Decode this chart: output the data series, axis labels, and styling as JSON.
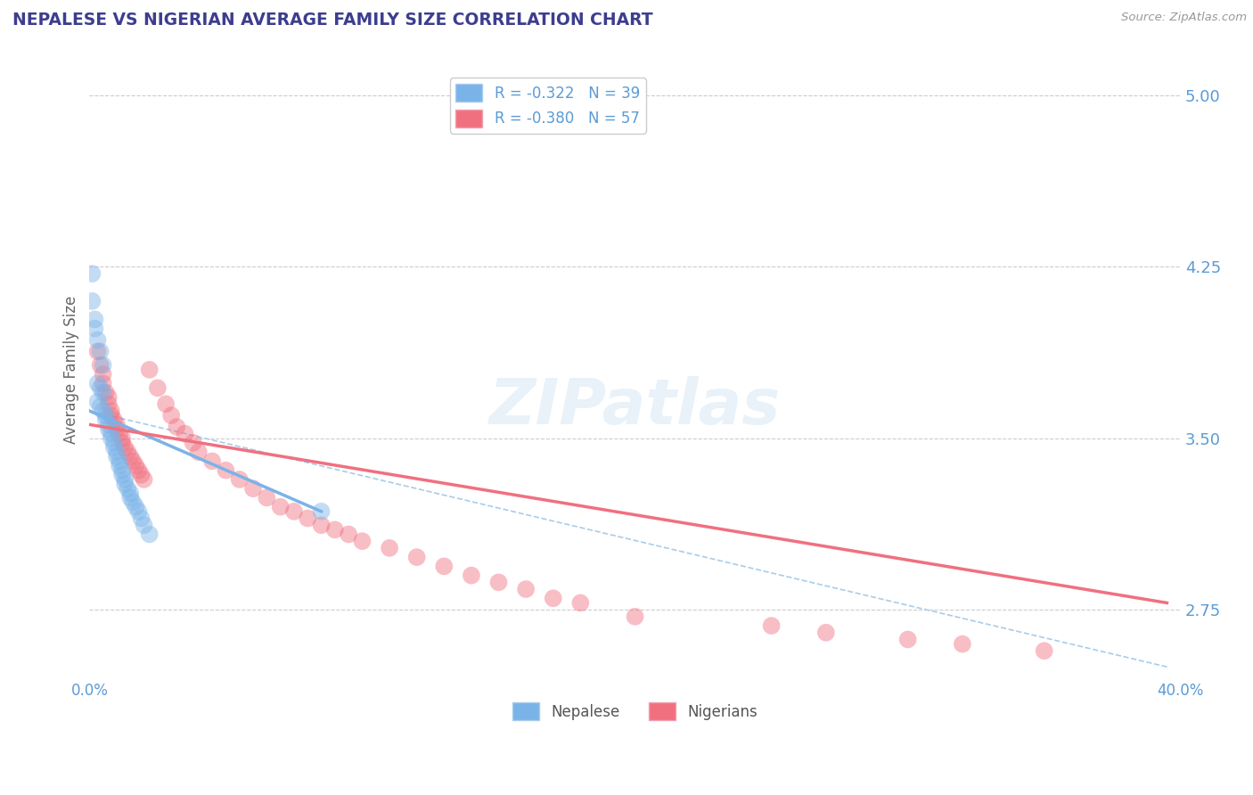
{
  "title": "NEPALESE VS NIGERIAN AVERAGE FAMILY SIZE CORRELATION CHART",
  "source": "Source: ZipAtlas.com",
  "ylabel": "Average Family Size",
  "xlim": [
    0.0,
    0.4
  ],
  "ylim": [
    2.45,
    5.15
  ],
  "yticks": [
    2.75,
    3.5,
    4.25,
    5.0
  ],
  "ytick_labels": [
    "2.75",
    "3.50",
    "4.25",
    "5.00"
  ],
  "xtick_vals": [
    0.0,
    0.4
  ],
  "xtick_labels": [
    "0.0%",
    "40.0%"
  ],
  "title_color": "#3d3d8f",
  "axis_tick_color": "#5b9bd5",
  "background_color": "#ffffff",
  "grid_color": "#cccccc",
  "nepal_color": "#7ab3e8",
  "nigeria_color": "#f07080",
  "nepal_scatter": [
    [
      0.001,
      4.22
    ],
    [
      0.001,
      4.1
    ],
    [
      0.002,
      4.02
    ],
    [
      0.002,
      3.98
    ],
    [
      0.003,
      3.93
    ],
    [
      0.004,
      3.88
    ],
    [
      0.005,
      3.82
    ],
    [
      0.003,
      3.74
    ],
    [
      0.004,
      3.72
    ],
    [
      0.005,
      3.7
    ],
    [
      0.003,
      3.66
    ],
    [
      0.004,
      3.64
    ],
    [
      0.005,
      3.62
    ],
    [
      0.006,
      3.6
    ],
    [
      0.006,
      3.58
    ],
    [
      0.007,
      3.56
    ],
    [
      0.007,
      3.54
    ],
    [
      0.008,
      3.52
    ],
    [
      0.008,
      3.5
    ],
    [
      0.009,
      3.48
    ],
    [
      0.009,
      3.46
    ],
    [
      0.01,
      3.44
    ],
    [
      0.01,
      3.42
    ],
    [
      0.011,
      3.4
    ],
    [
      0.011,
      3.38
    ],
    [
      0.012,
      3.36
    ],
    [
      0.012,
      3.34
    ],
    [
      0.013,
      3.32
    ],
    [
      0.013,
      3.3
    ],
    [
      0.014,
      3.28
    ],
    [
      0.015,
      3.26
    ],
    [
      0.015,
      3.24
    ],
    [
      0.016,
      3.22
    ],
    [
      0.017,
      3.2
    ],
    [
      0.018,
      3.18
    ],
    [
      0.019,
      3.15
    ],
    [
      0.02,
      3.12
    ],
    [
      0.022,
      3.08
    ],
    [
      0.085,
      3.18
    ]
  ],
  "nigeria_scatter": [
    [
      0.003,
      3.88
    ],
    [
      0.004,
      3.82
    ],
    [
      0.005,
      3.78
    ],
    [
      0.005,
      3.74
    ],
    [
      0.006,
      3.7
    ],
    [
      0.007,
      3.68
    ],
    [
      0.007,
      3.65
    ],
    [
      0.008,
      3.62
    ],
    [
      0.008,
      3.6
    ],
    [
      0.009,
      3.58
    ],
    [
      0.01,
      3.56
    ],
    [
      0.01,
      3.54
    ],
    [
      0.011,
      3.52
    ],
    [
      0.012,
      3.5
    ],
    [
      0.012,
      3.48
    ],
    [
      0.013,
      3.46
    ],
    [
      0.014,
      3.44
    ],
    [
      0.015,
      3.42
    ],
    [
      0.016,
      3.4
    ],
    [
      0.017,
      3.38
    ],
    [
      0.018,
      3.36
    ],
    [
      0.019,
      3.34
    ],
    [
      0.02,
      3.32
    ],
    [
      0.022,
      3.8
    ],
    [
      0.025,
      3.72
    ],
    [
      0.028,
      3.65
    ],
    [
      0.03,
      3.6
    ],
    [
      0.032,
      3.55
    ],
    [
      0.035,
      3.52
    ],
    [
      0.038,
      3.48
    ],
    [
      0.04,
      3.44
    ],
    [
      0.045,
      3.4
    ],
    [
      0.05,
      3.36
    ],
    [
      0.055,
      3.32
    ],
    [
      0.06,
      3.28
    ],
    [
      0.065,
      3.24
    ],
    [
      0.07,
      3.2
    ],
    [
      0.075,
      3.18
    ],
    [
      0.08,
      3.15
    ],
    [
      0.085,
      3.12
    ],
    [
      0.09,
      3.1
    ],
    [
      0.095,
      3.08
    ],
    [
      0.1,
      3.05
    ],
    [
      0.11,
      3.02
    ],
    [
      0.12,
      2.98
    ],
    [
      0.13,
      2.94
    ],
    [
      0.14,
      2.9
    ],
    [
      0.15,
      2.87
    ],
    [
      0.16,
      2.84
    ],
    [
      0.17,
      2.8
    ],
    [
      0.18,
      2.78
    ],
    [
      0.2,
      2.72
    ],
    [
      0.25,
      2.68
    ],
    [
      0.27,
      2.65
    ],
    [
      0.3,
      2.62
    ],
    [
      0.32,
      2.6
    ],
    [
      0.35,
      2.57
    ]
  ],
  "nepal_line": {
    "x0": 0.0,
    "x1": 0.085,
    "y0": 3.62,
    "y1": 3.18
  },
  "nigeria_line": {
    "x0": 0.0,
    "x1": 0.395,
    "y0": 3.56,
    "y1": 2.78
  },
  "dashed_line": {
    "x0": 0.0,
    "x1": 0.395,
    "y0": 3.62,
    "y1": 2.5
  },
  "dashed_color": "#aacce8",
  "watermark_text": "ZIPatlas",
  "legend1_label": "R = -0.322   N = 39",
  "legend2_label": "R = -0.380   N = 57",
  "bottom_legend": [
    "Nepalese",
    "Nigerians"
  ]
}
